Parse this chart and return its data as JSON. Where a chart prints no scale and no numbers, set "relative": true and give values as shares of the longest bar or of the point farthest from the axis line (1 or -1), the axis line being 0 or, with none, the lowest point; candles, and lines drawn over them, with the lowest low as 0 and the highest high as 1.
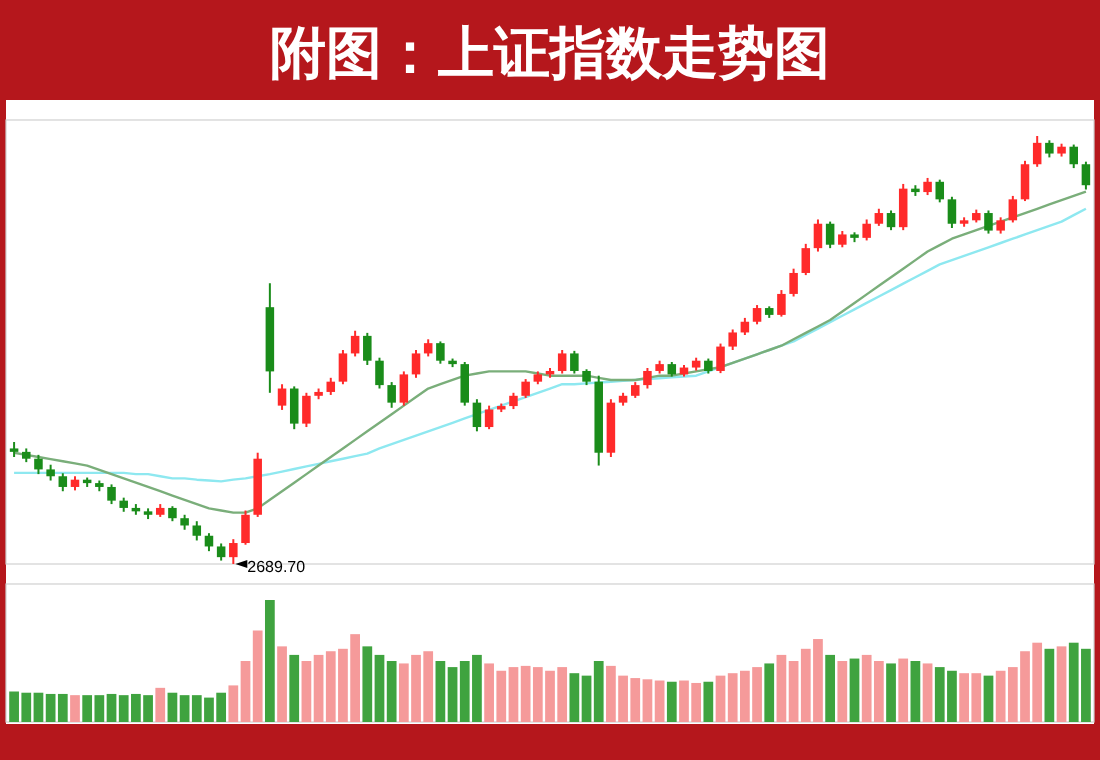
{
  "chart_data": [
    {
      "type": "candlestick",
      "title": "附图：上证指数走势图",
      "relative": true,
      "categories": [
        null,
        null,
        null,
        null,
        null,
        null,
        null,
        null,
        null,
        null,
        null,
        null,
        null,
        null,
        null,
        null,
        null,
        null,
        null,
        null,
        null,
        null,
        null,
        null,
        null,
        null,
        null,
        null,
        null,
        null,
        null,
        null,
        null,
        null,
        null,
        null,
        null,
        null,
        null,
        null,
        null,
        null,
        null,
        null,
        null,
        null,
        null,
        null,
        null,
        null,
        null,
        null,
        null,
        null,
        null,
        null,
        null,
        null,
        null,
        null,
        null,
        null,
        null,
        null,
        null,
        null,
        null,
        null,
        null,
        null,
        null,
        null,
        null,
        null,
        null,
        null,
        null,
        null,
        null,
        null,
        null,
        null,
        null,
        null,
        null,
        null,
        null,
        null,
        null
      ],
      "ohlc": [
        [
          0.27,
          0.285,
          0.25,
          0.262
        ],
        [
          0.262,
          0.27,
          0.238,
          0.246
        ],
        [
          0.246,
          0.255,
          0.21,
          0.221
        ],
        [
          0.221,
          0.232,
          0.195,
          0.205
        ],
        [
          0.205,
          0.212,
          0.17,
          0.18
        ],
        [
          0.18,
          0.205,
          0.172,
          0.197
        ],
        [
          0.197,
          0.202,
          0.18,
          0.189
        ],
        [
          0.189,
          0.195,
          0.17,
          0.18
        ],
        [
          0.18,
          0.186,
          0.14,
          0.148
        ],
        [
          0.148,
          0.155,
          0.122,
          0.131
        ],
        [
          0.131,
          0.14,
          0.115,
          0.123
        ],
        [
          0.123,
          0.13,
          0.105,
          0.115
        ],
        [
          0.115,
          0.14,
          0.11,
          0.131
        ],
        [
          0.131,
          0.135,
          0.1,
          0.107
        ],
        [
          0.107,
          0.115,
          0.08,
          0.09
        ],
        [
          0.09,
          0.1,
          0.055,
          0.066
        ],
        [
          0.066,
          0.072,
          0.03,
          0.041
        ],
        [
          0.041,
          0.048,
          0.008,
          0.016
        ],
        [
          0.016,
          0.058,
          0,
          0.049
        ],
        [
          0.049,
          0.125,
          0.045,
          0.115
        ],
        [
          0.115,
          0.26,
          0.11,
          0.246
        ],
        [
          0.6,
          0.656,
          0.4,
          0.45
        ],
        [
          0.37,
          0.42,
          0.36,
          0.41
        ],
        [
          0.41,
          0.415,
          0.315,
          0.328
        ],
        [
          0.328,
          0.4,
          0.32,
          0.393
        ],
        [
          0.393,
          0.41,
          0.385,
          0.402
        ],
        [
          0.402,
          0.435,
          0.395,
          0.426
        ],
        [
          0.426,
          0.5,
          0.42,
          0.492
        ],
        [
          0.492,
          0.545,
          0.485,
          0.533
        ],
        [
          0.533,
          0.54,
          0.465,
          0.475
        ],
        [
          0.475,
          0.482,
          0.41,
          0.418
        ],
        [
          0.418,
          0.425,
          0.365,
          0.377
        ],
        [
          0.377,
          0.45,
          0.37,
          0.443
        ],
        [
          0.443,
          0.5,
          0.435,
          0.492
        ],
        [
          0.492,
          0.525,
          0.485,
          0.516
        ],
        [
          0.516,
          0.52,
          0.468,
          0.475
        ],
        [
          0.475,
          0.48,
          0.46,
          0.467
        ],
        [
          0.467,
          0.472,
          0.37,
          0.377
        ],
        [
          0.377,
          0.385,
          0.31,
          0.32
        ],
        [
          0.32,
          0.37,
          0.315,
          0.361
        ],
        [
          0.361,
          0.375,
          0.355,
          0.369
        ],
        [
          0.369,
          0.4,
          0.362,
          0.393
        ],
        [
          0.393,
          0.432,
          0.388,
          0.426
        ],
        [
          0.426,
          0.45,
          0.42,
          0.443
        ],
        [
          0.443,
          0.458,
          0.435,
          0.451
        ],
        [
          0.451,
          0.5,
          0.445,
          0.492
        ],
        [
          0.492,
          0.498,
          0.445,
          0.451
        ],
        [
          0.451,
          0.455,
          0.418,
          0.426
        ],
        [
          0.426,
          0.44,
          0.23,
          0.26
        ],
        [
          0.26,
          0.385,
          0.25,
          0.377
        ],
        [
          0.377,
          0.4,
          0.37,
          0.393
        ],
        [
          0.393,
          0.425,
          0.388,
          0.418
        ],
        [
          0.418,
          0.458,
          0.41,
          0.451
        ],
        [
          0.451,
          0.475,
          0.445,
          0.467
        ],
        [
          0.467,
          0.472,
          0.438,
          0.443
        ],
        [
          0.443,
          0.465,
          0.438,
          0.459
        ],
        [
          0.459,
          0.482,
          0.452,
          0.475
        ],
        [
          0.475,
          0.48,
          0.445,
          0.451
        ],
        [
          0.451,
          0.515,
          0.446,
          0.508
        ],
        [
          0.508,
          0.548,
          0.5,
          0.541
        ],
        [
          0.541,
          0.575,
          0.535,
          0.566
        ],
        [
          0.566,
          0.605,
          0.56,
          0.598
        ],
        [
          0.598,
          0.602,
          0.575,
          0.582
        ],
        [
          0.582,
          0.64,
          0.578,
          0.631
        ],
        [
          0.631,
          0.69,
          0.625,
          0.68
        ],
        [
          0.68,
          0.748,
          0.675,
          0.738
        ],
        [
          0.738,
          0.805,
          0.73,
          0.795
        ],
        [
          0.795,
          0.8,
          0.738,
          0.746
        ],
        [
          0.746,
          0.778,
          0.74,
          0.77
        ],
        [
          0.77,
          0.775,
          0.752,
          0.762
        ],
        [
          0.762,
          0.805,
          0.756,
          0.795
        ],
        [
          0.795,
          0.83,
          0.79,
          0.82
        ],
        [
          0.82,
          0.826,
          0.78,
          0.787
        ],
        [
          0.787,
          0.888,
          0.78,
          0.877
        ],
        [
          0.877,
          0.885,
          0.86,
          0.869
        ],
        [
          0.869,
          0.902,
          0.862,
          0.893
        ],
        [
          0.893,
          0.898,
          0.845,
          0.852
        ],
        [
          0.852,
          0.858,
          0.785,
          0.795
        ],
        [
          0.795,
          0.81,
          0.788,
          0.803
        ],
        [
          0.803,
          0.828,
          0.798,
          0.82
        ],
        [
          0.82,
          0.826,
          0.772,
          0.779
        ],
        [
          0.779,
          0.81,
          0.772,
          0.803
        ],
        [
          0.803,
          0.86,
          0.798,
          0.852
        ],
        [
          0.852,
          0.942,
          0.848,
          0.934
        ],
        [
          0.934,
          1,
          0.928,
          0.984
        ],
        [
          0.984,
          0.99,
          0.95,
          0.959
        ],
        [
          0.959,
          0.982,
          0.952,
          0.975
        ],
        [
          0.975,
          0.98,
          0.925,
          0.934
        ],
        [
          0.934,
          0.94,
          0.875,
          0.885
        ]
      ],
      "colors": [
        "#1a8c1a",
        "#1a8c1a",
        "#1a8c1a",
        "#1a8c1a",
        "#1a8c1a",
        "#ff2a2a",
        "#1a8c1a",
        "#1a8c1a",
        "#1a8c1a",
        "#1a8c1a",
        "#1a8c1a",
        "#1a8c1a",
        "#ff2a2a",
        "#1a8c1a",
        "#1a8c1a",
        "#1a8c1a",
        "#1a8c1a",
        "#1a8c1a",
        "#ff2a2a",
        "#ff2a2a",
        "#ff2a2a",
        "#1a8c1a",
        "#ff2a2a",
        "#1a8c1a",
        "#ff2a2a",
        "#ff2a2a",
        "#ff2a2a",
        "#ff2a2a",
        "#ff2a2a",
        "#1a8c1a",
        "#1a8c1a",
        "#1a8c1a",
        "#ff2a2a",
        "#ff2a2a",
        "#ff2a2a",
        "#1a8c1a",
        "#1a8c1a",
        "#1a8c1a",
        "#1a8c1a",
        "#ff2a2a",
        "#ff2a2a",
        "#ff2a2a",
        "#ff2a2a",
        "#ff2a2a",
        "#ff2a2a",
        "#ff2a2a",
        "#1a8c1a",
        "#1a8c1a",
        "#1a8c1a",
        "#ff2a2a",
        "#ff2a2a",
        "#ff2a2a",
        "#ff2a2a",
        "#ff2a2a",
        "#1a8c1a",
        "#ff2a2a",
        "#ff2a2a",
        "#1a8c1a",
        "#ff2a2a",
        "#ff2a2a",
        "#ff2a2a",
        "#ff2a2a",
        "#1a8c1a",
        "#ff2a2a",
        "#ff2a2a",
        "#ff2a2a",
        "#ff2a2a",
        "#1a8c1a",
        "#ff2a2a",
        "#1a8c1a",
        "#ff2a2a",
        "#ff2a2a",
        "#1a8c1a",
        "#ff2a2a",
        "#1a8c1a",
        "#ff2a2a",
        "#1a8c1a",
        "#1a8c1a",
        "#ff2a2a",
        "#ff2a2a",
        "#1a8c1a",
        "#ff2a2a",
        "#ff2a2a",
        "#ff2a2a",
        "#ff2a2a",
        "#1a8c1a",
        "#ff2a2a",
        "#1a8c1a",
        "#1a8c1a"
      ],
      "series": [
        {
          "type": "line",
          "color": "#8ee8f0",
          "values": [
            0.213,
            0.213,
            0.213,
            0.213,
            0.213,
            0.213,
            0.213,
            0.213,
            0.213,
            0.213,
            0.21,
            0.21,
            0.205,
            0.2,
            0.2,
            0.197,
            0.195,
            0.193,
            0.197,
            0.2,
            0.205,
            0.21,
            0.216,
            0.222,
            0.228,
            0.234,
            0.24,
            0.246,
            0.252,
            0.258,
            0.27,
            0.28,
            0.29,
            0.3,
            0.31,
            0.32,
            0.33,
            0.34,
            0.35,
            0.36,
            0.37,
            0.38,
            0.39,
            0.4,
            0.41,
            0.42,
            0.42,
            0.422,
            0.424,
            0.426,
            0.428,
            0.43,
            0.432,
            0.434,
            0.436,
            0.438,
            0.44,
            0.45,
            0.46,
            0.47,
            0.48,
            0.49,
            0.5,
            0.51,
            0.52,
            0.535,
            0.55,
            0.565,
            0.58,
            0.595,
            0.61,
            0.625,
            0.64,
            0.655,
            0.67,
            0.685,
            0.7,
            0.71,
            0.72,
            0.73,
            0.74,
            0.75,
            0.76,
            0.77,
            0.78,
            0.79,
            0.8,
            0.815,
            0.83
          ]
        },
        {
          "type": "line",
          "color": "#7aae7a",
          "values": [
            0.26,
            0.255,
            0.25,
            0.245,
            0.24,
            0.235,
            0.23,
            0.22,
            0.21,
            0.2,
            0.19,
            0.18,
            0.17,
            0.16,
            0.15,
            0.14,
            0.13,
            0.125,
            0.12,
            0.12,
            0.13,
            0.15,
            0.17,
            0.19,
            0.21,
            0.23,
            0.25,
            0.27,
            0.29,
            0.31,
            0.33,
            0.35,
            0.37,
            0.39,
            0.41,
            0.42,
            0.43,
            0.44,
            0.445,
            0.45,
            0.45,
            0.45,
            0.45,
            0.445,
            0.44,
            0.44,
            0.44,
            0.44,
            0.435,
            0.43,
            0.43,
            0.43,
            0.435,
            0.44,
            0.44,
            0.445,
            0.45,
            0.455,
            0.46,
            0.47,
            0.48,
            0.49,
            0.5,
            0.51,
            0.525,
            0.54,
            0.555,
            0.57,
            0.59,
            0.61,
            0.63,
            0.65,
            0.67,
            0.69,
            0.71,
            0.73,
            0.745,
            0.76,
            0.77,
            0.78,
            0.79,
            0.8,
            0.81,
            0.82,
            0.83,
            0.84,
            0.85,
            0.86,
            0.87
          ]
        }
      ],
      "annotations": [
        "2689.70"
      ]
    },
    {
      "type": "bar",
      "relative": true,
      "categories": [
        null,
        null,
        null,
        null,
        null,
        null,
        null,
        null,
        null,
        null,
        null,
        null,
        null,
        null,
        null,
        null,
        null,
        null,
        null,
        null,
        null,
        null,
        null,
        null,
        null,
        null,
        null,
        null,
        null,
        null,
        null,
        null,
        null,
        null,
        null,
        null,
        null,
        null,
        null,
        null,
        null,
        null,
        null,
        null,
        null,
        null,
        null,
        null,
        null,
        null,
        null,
        null,
        null,
        null,
        null,
        null,
        null,
        null,
        null,
        null,
        null,
        null,
        null,
        null,
        null,
        null,
        null,
        null,
        null,
        null,
        null,
        null,
        null,
        null,
        null,
        null,
        null,
        null,
        null,
        null,
        null,
        null,
        null,
        null,
        null,
        null,
        null,
        null,
        null
      ],
      "values": [
        0.25,
        0.24,
        0.24,
        0.23,
        0.23,
        0.22,
        0.22,
        0.22,
        0.23,
        0.22,
        0.23,
        0.22,
        0.28,
        0.24,
        0.22,
        0.22,
        0.2,
        0.24,
        0.3,
        0.5,
        0.75,
        1.0,
        0.62,
        0.55,
        0.5,
        0.55,
        0.58,
        0.6,
        0.72,
        0.62,
        0.55,
        0.5,
        0.48,
        0.55,
        0.58,
        0.5,
        0.45,
        0.5,
        0.55,
        0.48,
        0.42,
        0.45,
        0.46,
        0.45,
        0.42,
        0.45,
        0.4,
        0.38,
        0.5,
        0.46,
        0.38,
        0.36,
        0.35,
        0.34,
        0.33,
        0.34,
        0.32,
        0.33,
        0.38,
        0.4,
        0.42,
        0.45,
        0.48,
        0.55,
        0.5,
        0.6,
        0.68,
        0.55,
        0.5,
        0.52,
        0.55,
        0.5,
        0.48,
        0.52,
        0.5,
        0.48,
        0.45,
        0.42,
        0.4,
        0.4,
        0.38,
        0.42,
        0.45,
        0.58,
        0.65,
        0.6,
        0.62,
        0.65,
        0.6
      ],
      "colors": [
        "#3fa33f",
        "#3fa33f",
        "#3fa33f",
        "#3fa33f",
        "#3fa33f",
        "#f59a9a",
        "#3fa33f",
        "#3fa33f",
        "#3fa33f",
        "#3fa33f",
        "#3fa33f",
        "#3fa33f",
        "#f59a9a",
        "#3fa33f",
        "#3fa33f",
        "#3fa33f",
        "#3fa33f",
        "#3fa33f",
        "#f59a9a",
        "#f59a9a",
        "#f59a9a",
        "#3fa33f",
        "#f59a9a",
        "#3fa33f",
        "#f59a9a",
        "#f59a9a",
        "#f59a9a",
        "#f59a9a",
        "#f59a9a",
        "#3fa33f",
        "#3fa33f",
        "#3fa33f",
        "#f59a9a",
        "#f59a9a",
        "#f59a9a",
        "#3fa33f",
        "#3fa33f",
        "#3fa33f",
        "#3fa33f",
        "#f59a9a",
        "#f59a9a",
        "#f59a9a",
        "#f59a9a",
        "#f59a9a",
        "#f59a9a",
        "#f59a9a",
        "#3fa33f",
        "#3fa33f",
        "#3fa33f",
        "#f59a9a",
        "#f59a9a",
        "#f59a9a",
        "#f59a9a",
        "#f59a9a",
        "#3fa33f",
        "#f59a9a",
        "#f59a9a",
        "#3fa33f",
        "#f59a9a",
        "#f59a9a",
        "#f59a9a",
        "#f59a9a",
        "#3fa33f",
        "#f59a9a",
        "#f59a9a",
        "#f59a9a",
        "#f59a9a",
        "#3fa33f",
        "#f59a9a",
        "#3fa33f",
        "#f59a9a",
        "#f59a9a",
        "#3fa33f",
        "#f59a9a",
        "#3fa33f",
        "#f59a9a",
        "#3fa33f",
        "#3fa33f",
        "#f59a9a",
        "#f59a9a",
        "#3fa33f",
        "#f59a9a",
        "#f59a9a",
        "#f59a9a",
        "#f59a9a",
        "#3fa33f",
        "#f59a9a",
        "#3fa33f",
        "#3fa33f"
      ]
    }
  ]
}
